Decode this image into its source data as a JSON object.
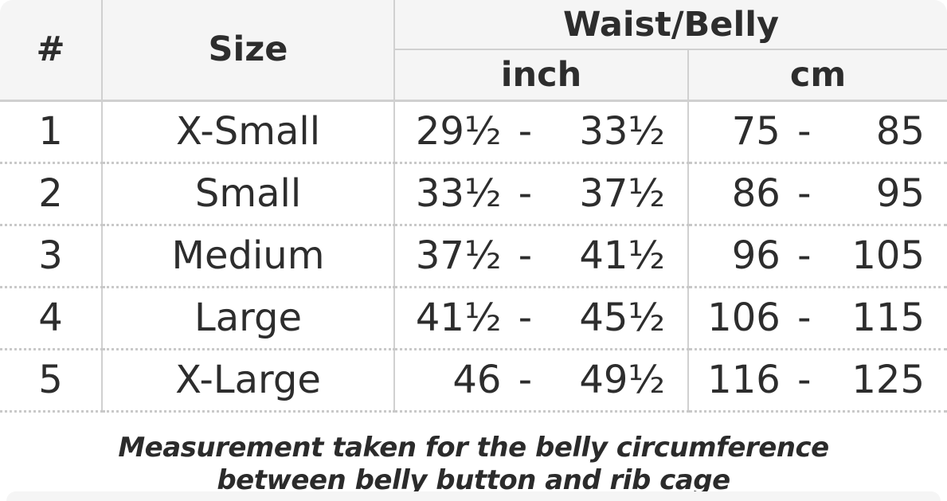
{
  "table": {
    "headers": {
      "num": "#",
      "size": "Size",
      "group": "Waist/Belly",
      "unit_inch": "inch",
      "unit_cm": "cm"
    },
    "range_separator": "-",
    "rows": [
      {
        "num": "1",
        "size": "X-Small",
        "inch": {
          "min": "29½",
          "max": "33½"
        },
        "cm": {
          "min": "75",
          "max": "85"
        }
      },
      {
        "num": "2",
        "size": "Small",
        "inch": {
          "min": "33½",
          "max": "37½"
        },
        "cm": {
          "min": "86",
          "max": "95"
        }
      },
      {
        "num": "3",
        "size": "Medium",
        "inch": {
          "min": "37½",
          "max": "41½"
        },
        "cm": {
          "min": "96",
          "max": "105"
        }
      },
      {
        "num": "4",
        "size": "Large",
        "inch": {
          "min": "41½",
          "max": "45½"
        },
        "cm": {
          "min": "106",
          "max": "115"
        }
      },
      {
        "num": "5",
        "size": "X-Large",
        "inch": {
          "min": "46",
          "max": "49½"
        },
        "cm": {
          "min": "116",
          "max": "125"
        }
      }
    ]
  },
  "note": {
    "line1": "Measurement taken for the belly circumference",
    "line2": "between belly button and rib cage"
  },
  "colors": {
    "header_bg": "#f5f5f5",
    "solid_border": "#d0d0d0",
    "dotted_border": "#c9c9c9",
    "text": "#2d2d2d"
  },
  "chart_data": {
    "type": "table",
    "title": "Waist/Belly size chart",
    "columns": [
      "#",
      "Size",
      "Waist/Belly inch",
      "Waist/Belly cm"
    ],
    "rows": [
      [
        1,
        "X-Small",
        "29½ - 33½",
        "75 - 85"
      ],
      [
        2,
        "Small",
        "33½ - 37½",
        "86 - 95"
      ],
      [
        3,
        "Medium",
        "37½ - 41½",
        "96 - 105"
      ],
      [
        4,
        "Large",
        "41½ - 45½",
        "106 - 115"
      ],
      [
        5,
        "X-Large",
        "46 - 49½",
        "116 - 125"
      ]
    ],
    "footnote": "Measurement taken for the belly circumference between belly button and rib cage"
  }
}
